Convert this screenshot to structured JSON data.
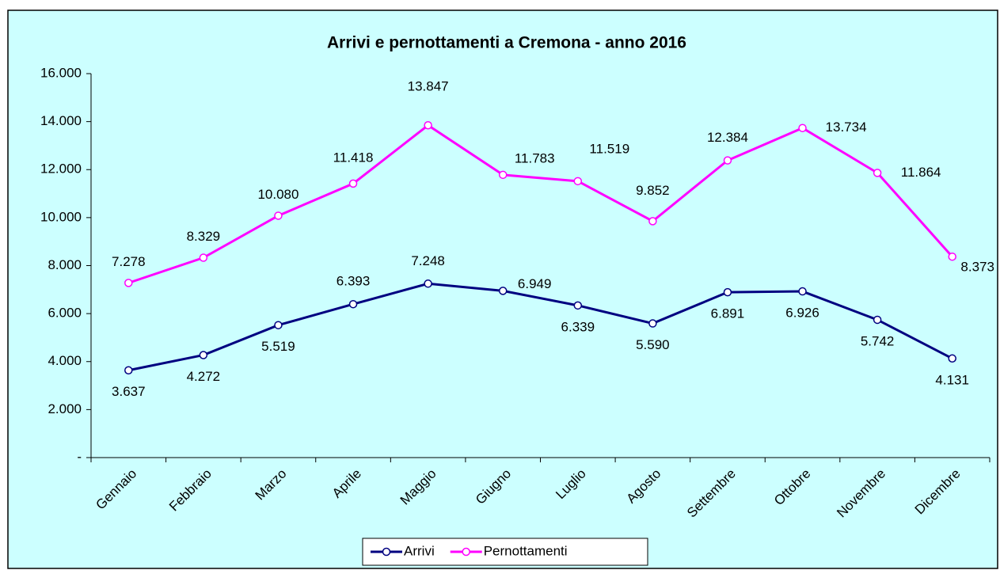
{
  "chart_data": {
    "type": "line",
    "title": "Arrivi e pernottamenti a Cremona - anno 2016",
    "categories": [
      "Gennaio",
      "Febbraio",
      "Marzo",
      "Aprile",
      "Maggio",
      "Giugno",
      "Luglio",
      "Agosto",
      "Settembre",
      "Ottobre",
      "Novembre",
      "Dicembre"
    ],
    "series": [
      {
        "name": "Arrivi",
        "color": "#000080",
        "values": [
          3637,
          4272,
          5519,
          6393,
          7248,
          6949,
          6339,
          5590,
          6891,
          6926,
          5742,
          4131
        ],
        "value_labels": [
          "3.637",
          "4.272",
          "5.519",
          "6.393",
          "7.248",
          "6.949",
          "6.339",
          "5.590",
          "6.891",
          "6.926",
          "5.742",
          "4.131"
        ]
      },
      {
        "name": "Pernottamenti",
        "color": "#ff00ff",
        "values": [
          7278,
          8329,
          10080,
          11418,
          13847,
          11783,
          11519,
          9852,
          12384,
          13734,
          11864,
          8373
        ],
        "value_labels": [
          "7.278",
          "8.329",
          "10.080",
          "11.418",
          "13.847",
          "11.783",
          "11.519",
          "9.852",
          "12.384",
          "13.734",
          "11.864",
          "8.373"
        ]
      }
    ],
    "ylim": [
      0,
      16000
    ],
    "yticks": [
      {
        "value": 0,
        "label": "-"
      },
      {
        "value": 2000,
        "label": "2.000"
      },
      {
        "value": 4000,
        "label": "4.000"
      },
      {
        "value": 6000,
        "label": "6.000"
      },
      {
        "value": 8000,
        "label": "8.000"
      },
      {
        "value": 10000,
        "label": "10.000"
      },
      {
        "value": 12000,
        "label": "12.000"
      },
      {
        "value": 14000,
        "label": "14.000"
      },
      {
        "value": 16000,
        "label": "16.000"
      }
    ],
    "legend": "bottom"
  }
}
